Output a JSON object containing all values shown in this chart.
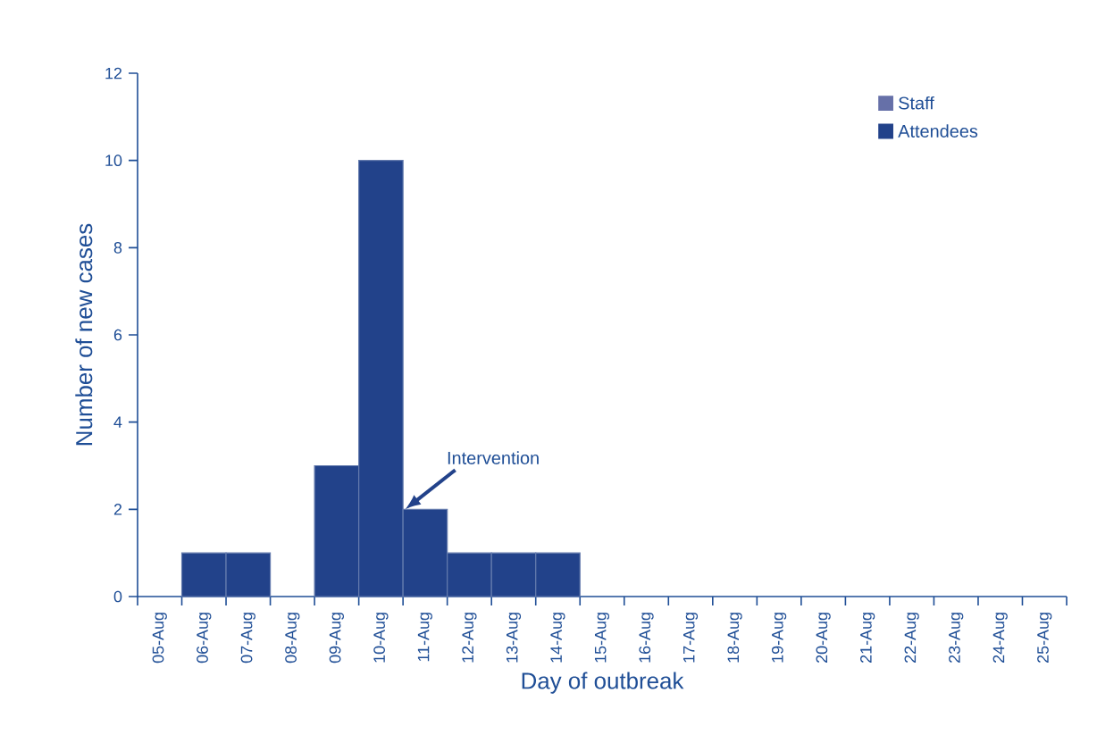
{
  "chart_data": {
    "type": "bar",
    "stacked": true,
    "xlabel": "Day of outbreak",
    "ylabel": "Number of new cases",
    "categories": [
      "05-Aug",
      "06-Aug",
      "07-Aug",
      "08-Aug",
      "09-Aug",
      "10-Aug",
      "11-Aug",
      "12-Aug",
      "13-Aug",
      "14-Aug",
      "15-Aug",
      "16-Aug",
      "17-Aug",
      "18-Aug",
      "19-Aug",
      "20-Aug",
      "21-Aug",
      "22-Aug",
      "23-Aug",
      "24-Aug",
      "25-Aug"
    ],
    "series": [
      {
        "name": "Staff",
        "color": "#6670a8",
        "values": [
          0,
          0,
          0,
          0,
          0,
          0,
          0,
          0,
          0,
          0,
          0,
          0,
          0,
          0,
          0,
          0,
          0,
          0,
          0,
          0,
          0
        ]
      },
      {
        "name": "Attendees",
        "color": "#22428a",
        "values": [
          0,
          1,
          1,
          0,
          3,
          10,
          2,
          1,
          1,
          1,
          0,
          0,
          0,
          0,
          0,
          0,
          0,
          0,
          0,
          0,
          0
        ]
      }
    ],
    "ylim": [
      0,
      12
    ],
    "yticks": [
      0,
      2,
      4,
      6,
      8,
      10,
      12
    ],
    "grid": false,
    "legend": "top right",
    "annotations": [
      {
        "text": "Intervention",
        "x": "11-Aug",
        "y": 2
      }
    ]
  }
}
